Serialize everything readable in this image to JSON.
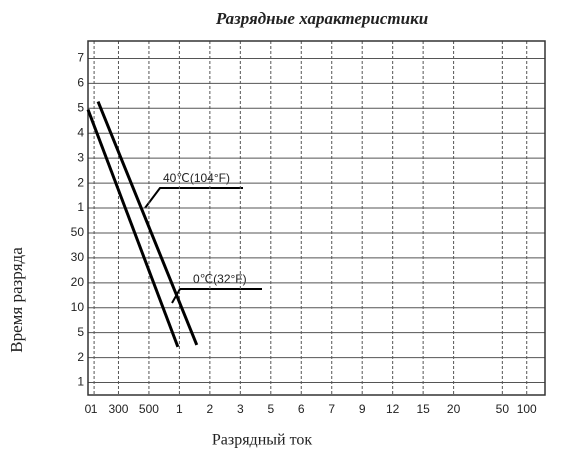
{
  "chart_data": {
    "type": "line",
    "title": "Разрядные характеристики",
    "x_label": "Разрядный ток",
    "y_label": "Время разряда",
    "xlim": [
      0,
      15
    ],
    "ylim": [
      0.5,
      14.7
    ],
    "xticks": [
      {
        "value": 0,
        "label": "0"
      },
      {
        "value": 0.2,
        "label": "1"
      },
      {
        "value": 1,
        "label": "300"
      },
      {
        "value": 2,
        "label": "500"
      },
      {
        "value": 3,
        "label": "1"
      },
      {
        "value": 4,
        "label": "2"
      },
      {
        "value": 5,
        "label": "3"
      },
      {
        "value": 6,
        "label": "5"
      },
      {
        "value": 7,
        "label": "6"
      },
      {
        "value": 8,
        "label": "7"
      },
      {
        "value": 9,
        "label": "9"
      },
      {
        "value": 10,
        "label": "12"
      },
      {
        "value": 11,
        "label": "15"
      },
      {
        "value": 12,
        "label": "20"
      },
      {
        "value": 13.6,
        "label": "50"
      },
      {
        "value": 14.4,
        "label": "100"
      }
    ],
    "yticks": [
      {
        "value": 1,
        "label": "1"
      },
      {
        "value": 2,
        "label": "2"
      },
      {
        "value": 3,
        "label": "5"
      },
      {
        "value": 4,
        "label": "10"
      },
      {
        "value": 5,
        "label": "20"
      },
      {
        "value": 6,
        "label": "30"
      },
      {
        "value": 7,
        "label": "50"
      },
      {
        "value": 8,
        "label": "1"
      },
      {
        "value": 9,
        "label": "2"
      },
      {
        "value": 10,
        "label": "3"
      },
      {
        "value": 11,
        "label": "4"
      },
      {
        "value": 12,
        "label": "5"
      },
      {
        "value": 13,
        "label": "6"
      },
      {
        "value": 14,
        "label": "7"
      }
    ],
    "grid": true,
    "series": [
      {
        "name": "40℃(104°F)",
        "color": "#000000",
        "x": [
          0.33,
          3.57
        ],
        "values": [
          12.27,
          2.51
        ]
      },
      {
        "name": "0℃(32°F)",
        "color": "#000000",
        "x": [
          0,
          2.95
        ],
        "values": [
          11.95,
          2.43
        ]
      }
    ]
  }
}
